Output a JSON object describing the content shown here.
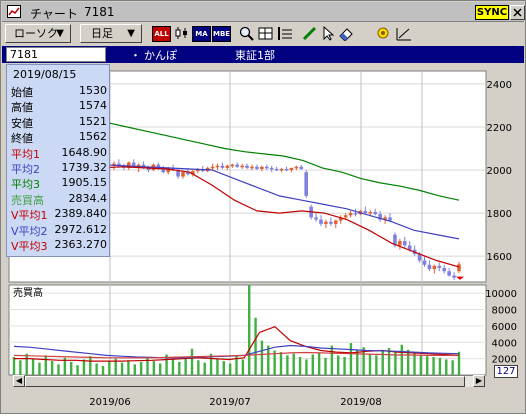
{
  "window": {
    "title": "チャート",
    "code": "7181",
    "sync_label": "SYNC"
  },
  "toolbar": {
    "chart_type": "ローソク",
    "period": "日足",
    "icons": [
      "all-icon",
      "candle-icon",
      "ma-icon",
      "mbe-icon",
      "zoom-icon",
      "grid-icon",
      "indicator-icon",
      "pen-icon",
      "cursor-icon",
      "eraser-icon",
      "settings-icon",
      "draw-icon"
    ],
    "icon_labels": {
      "all": "ALL",
      "ma": "MA",
      "mbe": "MBE"
    }
  },
  "infobar": {
    "code": "7181",
    "name": "かんぽ",
    "market": "東証1部"
  },
  "datapanel": {
    "date": "2019/08/15",
    "rows": [
      {
        "label": "始値",
        "value": "1530",
        "color": "#000000"
      },
      {
        "label": "高値",
        "value": "1574",
        "color": "#000000"
      },
      {
        "label": "安値",
        "value": "1521",
        "color": "#000000"
      },
      {
        "label": "終値",
        "value": "1562",
        "color": "#000000"
      },
      {
        "label": "平均1",
        "value": "1648.90",
        "color": "#c00000"
      },
      {
        "label": "平均2",
        "value": "1739.32",
        "color": "#4040c0"
      },
      {
        "label": "平均3",
        "value": "1905.15",
        "color": "#008000"
      },
      {
        "label": "売買高",
        "value": "2834.4",
        "color": "#40a040"
      },
      {
        "label": "V平均1",
        "value": "2389.840",
        "color": "#c00000"
      },
      {
        "label": "V平均2",
        "value": "2972.612",
        "color": "#4040c0"
      },
      {
        "label": "V平均3",
        "value": "2363.270",
        "color": "#c00000"
      }
    ]
  },
  "price_axis": {
    "ticks": [
      "2400",
      "2200",
      "2000",
      "1800",
      "1600"
    ]
  },
  "volume_panel": {
    "label": "売買高",
    "ticks": [
      "10000",
      "8000",
      "6000",
      "4000",
      "2000"
    ]
  },
  "x_axis": {
    "labels": [
      "2019/06",
      "2019/07",
      "2019/08"
    ]
  },
  "scroll": {
    "count": "127"
  },
  "colors": {
    "up": "#e06030",
    "down": "#8080e0",
    "ma1": "#c00000",
    "ma2": "#4040c0",
    "ma3": "#008000",
    "volume": "#40b040"
  }
}
